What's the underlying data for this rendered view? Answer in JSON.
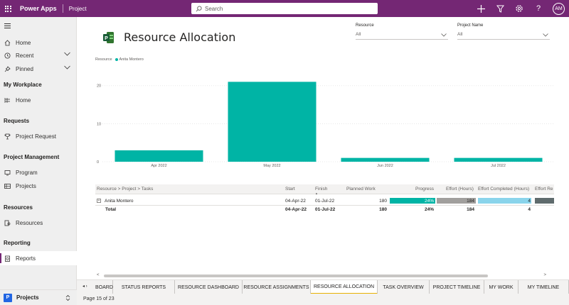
{
  "topbar": {
    "app_name": "Power Apps",
    "environment": "Project",
    "search_placeholder": "Search",
    "avatar_initials": "AM",
    "bg_color": "#742774"
  },
  "sidebar": {
    "main_items": [
      {
        "label": "Home",
        "icon": "home-icon"
      },
      {
        "label": "Recent",
        "icon": "clock-icon"
      },
      {
        "label": "Pinned",
        "icon": "pin-icon"
      }
    ],
    "groups": [
      {
        "title": "My Workplace",
        "items": [
          {
            "label": "Home",
            "icon": "dashboard-icon"
          }
        ]
      },
      {
        "title": "Requests",
        "items": [
          {
            "label": "Project Request",
            "icon": "trophy-icon"
          }
        ]
      },
      {
        "title": "Project Management",
        "items": [
          {
            "label": "Program",
            "icon": "monitor-icon"
          },
          {
            "label": "Projects",
            "icon": "grid-icon"
          }
        ]
      },
      {
        "title": "Resources",
        "items": [
          {
            "label": "Resources",
            "icon": "resource-icon"
          }
        ]
      },
      {
        "title": "Reporting",
        "items": [
          {
            "label": "Reports",
            "icon": "report-icon"
          }
        ]
      }
    ],
    "area": {
      "badge": "P",
      "label": "Projects"
    }
  },
  "report": {
    "title": "Resource Allocation",
    "slicers": [
      {
        "label": "Resource",
        "value": "All"
      },
      {
        "label": "Project Name",
        "value": "All"
      }
    ],
    "legend_title": "Resource",
    "legend_item": "Anita Montero",
    "accent_color": "#00b4a5"
  },
  "chart_data": {
    "type": "bar",
    "categories": [
      "Apr 2022",
      "May 2022",
      "Jun 2022",
      "Jul 2022"
    ],
    "values": [
      3,
      21,
      1,
      1
    ],
    "y_ticks": [
      "0",
      "10",
      "20"
    ],
    "ylim": [
      0,
      22
    ],
    "series": [
      {
        "name": "Anita Montero",
        "values": [
          3,
          21,
          1,
          1
        ]
      }
    ],
    "legend_position": "top-left",
    "grid": true
  },
  "table": {
    "headers": {
      "hierarchy": "Resource > Project > Tasks",
      "start": "Start",
      "finish": "Finish",
      "planned": "Planned Work",
      "progress": "Progress",
      "effort": "Effort (Hours)",
      "effort_completed": "Effort Completed (Hours)",
      "effort_remaining": "Effort Re"
    },
    "rows": [
      {
        "name": "Anita Montero",
        "start": "04-Apr-22",
        "finish": "01-Jul-22",
        "planned": "180",
        "progress": "24%",
        "effort": "184",
        "effort_completed": "4",
        "progress_frac": 1.0,
        "effort_frac": 1.0,
        "completed_frac": 1.0
      }
    ],
    "total": {
      "name": "Total",
      "start": "04-Apr-22",
      "finish": "01-Jul-22",
      "planned": "180",
      "progress": "24%",
      "effort": "184",
      "effort_completed": "4"
    }
  },
  "tabs": {
    "items": [
      "BOARD",
      "STATUS REPORTS",
      "RESOURCE DASHBOARD",
      "RESOURCE ASSIGNMENTS",
      "RESOURCE ALLOCATION",
      "TASK OVERVIEW",
      "PROJECT TIMELINE",
      "MY WORK",
      "MY TIMELINE"
    ],
    "active": "RESOURCE ALLOCATION",
    "page_label": "Page 15 of 23"
  }
}
